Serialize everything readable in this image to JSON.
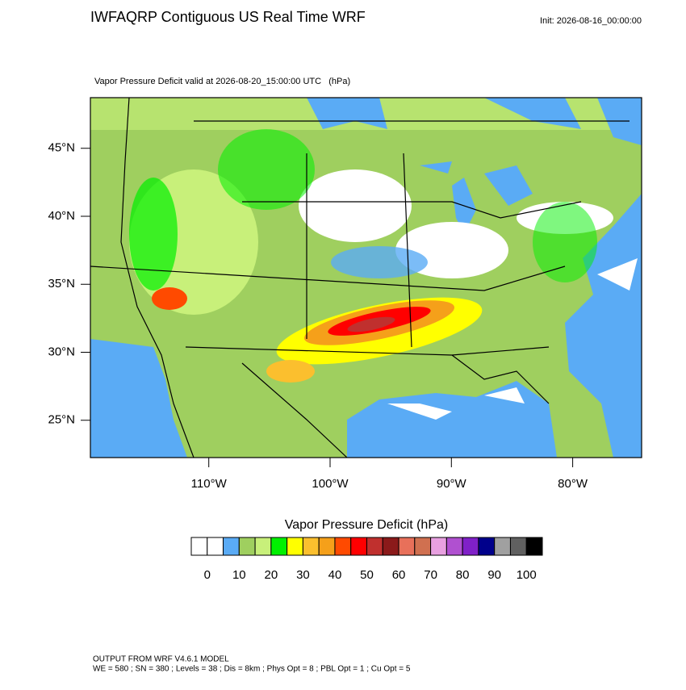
{
  "header": {
    "title": "IWFAQRP Contiguous US Real Time WRF",
    "init": "Init: 2026-08-16_00:00:00",
    "subtitle": "Vapor Pressure Deficit valid at 2026-08-20_15:00:00 UTC   (hPa)"
  },
  "map_axes": {
    "lat_ticks": [
      {
        "value": 45,
        "label": "45°N"
      },
      {
        "value": 40,
        "label": "40°N"
      },
      {
        "value": 35,
        "label": "35°N"
      },
      {
        "value": 30,
        "label": "30°N"
      },
      {
        "value": 25,
        "label": "25°N"
      }
    ],
    "lon_ticks": [
      {
        "value": -110,
        "label": "110°W"
      },
      {
        "value": -100,
        "label": "100°W"
      },
      {
        "value": -90,
        "label": "90°W"
      },
      {
        "value": -80,
        "label": "80°W"
      }
    ]
  },
  "colorbar": {
    "title": "Vapor Pressure Deficit  (hPa)",
    "colors": [
      "#ffffff",
      "#ffffff",
      "#5aabf5",
      "#9fcf5f",
      "#c8f07a",
      "#00f000",
      "#ffff00",
      "#fbbf2e",
      "#f5a01a",
      "#ff4a00",
      "#ff0000",
      "#c0302e",
      "#8b1a1a",
      "#e8705a",
      "#d07050",
      "#e8a0e0",
      "#b050d0",
      "#8020c8",
      "#00008b",
      "#a0a0a0",
      "#606060",
      "#000000"
    ],
    "ticks": [
      0,
      10,
      20,
      30,
      40,
      50,
      60,
      70,
      80,
      90,
      100
    ]
  },
  "footer": {
    "line1": "OUTPUT FROM WRF V4.6.1 MODEL",
    "line2": "WE = 580 ; SN = 380 ; Levels = 38 ; Dis = 8km ; Phys Opt = 8 ; PBL Opt = 1 ; Cu Opt = 5"
  }
}
